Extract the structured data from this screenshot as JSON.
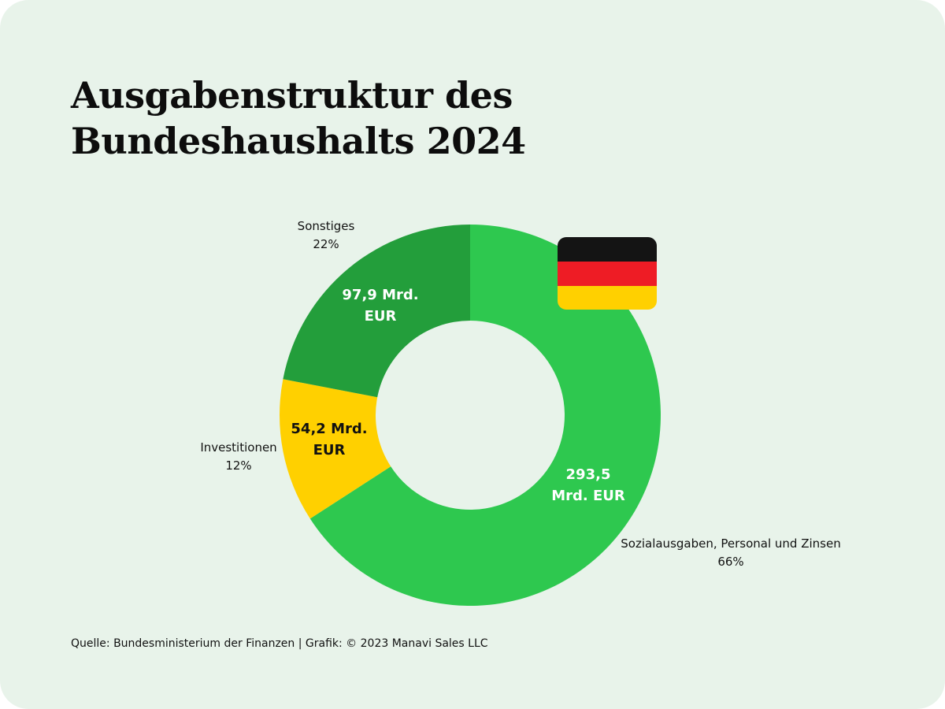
{
  "title": {
    "line1": "Ausgabenstruktur des",
    "line2": "Bundeshaushalts 2024"
  },
  "chart_data": {
    "type": "pie",
    "variant": "donut",
    "categories": [
      "Sozialausgaben, Personal und Zinsen",
      "Investitionen",
      "Sonstiges"
    ],
    "values": [
      293.5,
      54.2,
      97.9
    ],
    "value_labels": [
      [
        "293,5",
        "Mrd. EUR"
      ],
      [
        "54,2 Mrd.",
        "EUR"
      ],
      [
        "97,9 Mrd.",
        "EUR"
      ]
    ],
    "percent_labels": [
      "66%",
      "12%",
      "22%"
    ],
    "colors": [
      "#2ec84f",
      "#ffd000",
      "#239e3b"
    ],
    "value_label_colors": [
      "#ffffff",
      "#111111",
      "#ffffff"
    ],
    "start": "12 o'clock, clockwise"
  },
  "flag": {
    "icon": "germany-flag-icon",
    "colors": [
      "#141414",
      "#ee1c25",
      "#ffd000"
    ]
  },
  "footer": {
    "source": "Quelle: Bundesministerium der Finanzen  |  Grafik: © 2023 Manavi Sales LLC"
  }
}
